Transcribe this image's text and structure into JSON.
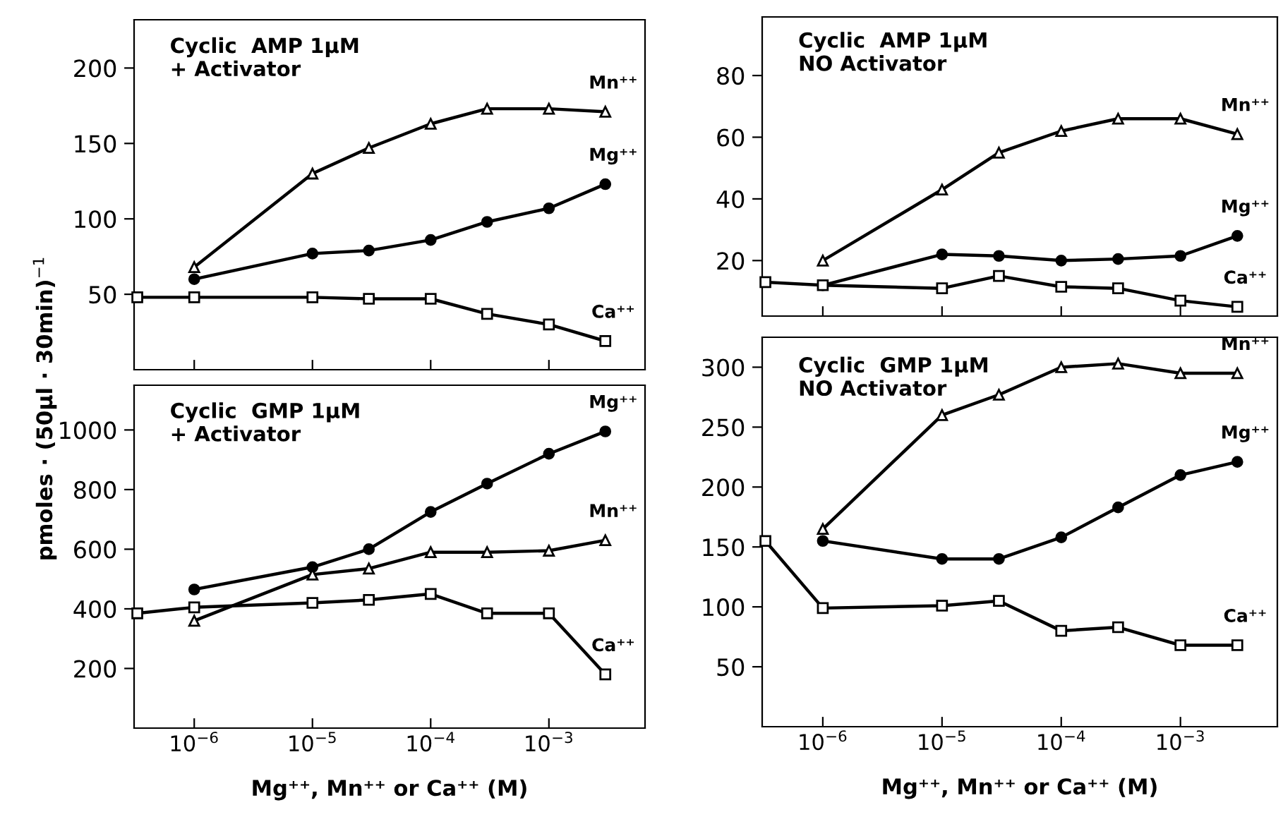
{
  "chart_data": [
    {
      "type": "line",
      "title": "Cyclic  AMP 1µM\n+ Activator",
      "ylabel": "pmoles · (50µl · 30min)$^{−1}$",
      "log": "x",
      "line_style": "solid",
      "grid": false,
      "legend": false,
      "tick_labels": "y",
      "xlim": [
        3.1e-07,
        0.0065
      ],
      "xticks": [
        {
          "value": 1e-06,
          "label": null
        },
        {
          "value": 1e-05,
          "label": null
        },
        {
          "value": 0.0001,
          "label": null
        },
        {
          "value": 0.001,
          "label": null
        }
      ],
      "ylim": [
        0,
        232
      ],
      "yticks": [
        50,
        100,
        150,
        200
      ],
      "x": [
        3.3e-07,
        1e-06,
        1e-05,
        3e-05,
        0.0001,
        0.0003,
        0.001,
        0.003
      ],
      "series": [
        {
          "name": "Mn⁺⁺",
          "color": "#000000",
          "marker": "triangle",
          "values": [
            null,
            68,
            130,
            147,
            163,
            173,
            173,
            171
          ]
        },
        {
          "name": "Mg⁺⁺",
          "color": "#000000",
          "marker": "circle",
          "values": [
            null,
            60,
            77,
            79,
            86,
            98,
            107,
            123
          ]
        },
        {
          "name": "Ca⁺⁺",
          "color": "#000000",
          "marker": "square",
          "values": [
            48,
            48,
            48,
            47,
            47,
            37,
            30,
            19
          ]
        }
      ]
    },
    {
      "type": "line",
      "title": "Cyclic  AMP 1µM\nNO Activator",
      "log": "x",
      "line_style": "solid",
      "grid": false,
      "legend": false,
      "tick_labels": "y",
      "xlim": [
        3.1e-07,
        0.0065
      ],
      "xticks": [
        {
          "value": 1e-06,
          "label": null
        },
        {
          "value": 1e-05,
          "label": null
        },
        {
          "value": 0.0001,
          "label": null
        },
        {
          "value": 0.001,
          "label": null
        }
      ],
      "ylim": [
        2,
        99
      ],
      "yticks": [
        20,
        40,
        60,
        80
      ],
      "x": [
        3.3e-07,
        1e-06,
        1e-05,
        3e-05,
        0.0001,
        0.0003,
        0.001,
        0.003
      ],
      "series": [
        {
          "name": "Mn⁺⁺",
          "color": "#000000",
          "marker": "triangle",
          "values": [
            null,
            20,
            43,
            55,
            62,
            66,
            66,
            61
          ]
        },
        {
          "name": "Mg⁺⁺",
          "color": "#000000",
          "marker": "circle",
          "values": [
            null,
            12,
            22,
            21.5,
            20,
            20.5,
            21.5,
            28
          ]
        },
        {
          "name": "Ca⁺⁺",
          "color": "#000000",
          "marker": "square",
          "values": [
            13,
            12,
            11,
            15,
            11.5,
            11,
            7,
            5
          ]
        }
      ]
    },
    {
      "type": "line",
      "title": "Cyclic  GMP 1µM\n+ Activator",
      "xlabel": "Mg⁺⁺, Mn⁺⁺ or Ca⁺⁺ (M)",
      "log": "x",
      "line_style": "solid",
      "grid": false,
      "legend": false,
      "xlim": [
        3.1e-07,
        0.0065
      ],
      "xticks": [
        {
          "value": 1e-06,
          "label": "10$^{−6}$"
        },
        {
          "value": 1e-05,
          "label": "10$^{−5}$"
        },
        {
          "value": 0.0001,
          "label": "10$^{−4}$"
        },
        {
          "value": 0.001,
          "label": "10$^{−3}$"
        }
      ],
      "ylim": [
        0,
        1150
      ],
      "yticks": [
        200,
        400,
        600,
        800,
        1000
      ],
      "x": [
        3.3e-07,
        1e-06,
        1e-05,
        3e-05,
        0.0001,
        0.0003,
        0.001,
        0.003
      ],
      "series": [
        {
          "name": "Mg⁺⁺",
          "color": "#000000",
          "marker": "circle",
          "values": [
            null,
            465,
            540,
            600,
            725,
            820,
            920,
            995
          ]
        },
        {
          "name": "Mn⁺⁺",
          "color": "#000000",
          "marker": "triangle",
          "values": [
            null,
            360,
            515,
            535,
            590,
            590,
            595,
            630
          ]
        },
        {
          "name": "Ca⁺⁺",
          "color": "#000000",
          "marker": "square",
          "values": [
            385,
            405,
            420,
            430,
            450,
            385,
            385,
            180
          ]
        }
      ]
    },
    {
      "type": "line",
      "title": "Cyclic  GMP 1µM\nNO Activator",
      "xlabel": "Mg⁺⁺, Mn⁺⁺ or Ca⁺⁺ (M)",
      "log": "x",
      "line_style": "solid",
      "grid": false,
      "legend": false,
      "xlim": [
        3.1e-07,
        0.0065
      ],
      "xticks": [
        {
          "value": 1e-06,
          "label": "10$^{−6}$"
        },
        {
          "value": 1e-05,
          "label": "10$^{−5}$"
        },
        {
          "value": 0.0001,
          "label": "10$^{−4}$"
        },
        {
          "value": 0.001,
          "label": "10$^{−3}$"
        }
      ],
      "ylim": [
        0,
        325
      ],
      "yticks": [
        50,
        100,
        150,
        200,
        250,
        300
      ],
      "x": [
        3.3e-07,
        1e-06,
        1e-05,
        3e-05,
        0.0001,
        0.0003,
        0.001,
        0.003
      ],
      "series": [
        {
          "name": "Mn⁺⁺",
          "color": "#000000",
          "marker": "triangle",
          "values": [
            null,
            165,
            260,
            277,
            300,
            303,
            295,
            295
          ]
        },
        {
          "name": "Mg⁺⁺",
          "color": "#000000",
          "marker": "circle",
          "values": [
            null,
            155,
            140,
            140,
            158,
            183,
            210,
            221
          ]
        },
        {
          "name": "Ca⁺⁺",
          "color": "#000000",
          "marker": "square",
          "values": [
            155,
            99,
            101,
            105,
            80,
            83,
            68,
            68
          ]
        }
      ]
    }
  ]
}
